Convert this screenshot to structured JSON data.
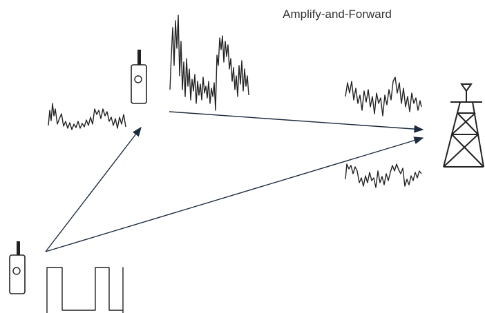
{
  "title": "Amplify-and-Forward"
}
